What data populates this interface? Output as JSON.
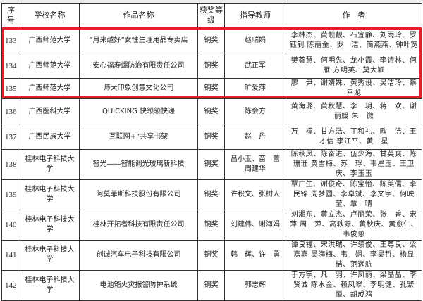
{
  "headers": {
    "index": "序号",
    "school": "学校名称",
    "work": "作品名称",
    "award": "获奖等级",
    "teacher": "指导教师",
    "authors": "作　者"
  },
  "highlight_color": "#e3202a",
  "rows": [
    {
      "index": "133",
      "school": "广西师范大学",
      "work": "“月来越好”女性生理用品专卖店",
      "award": "铜奖",
      "teacher": "赵瑞娟",
      "authors": "李林杰、黄靓靓、石宜静、刘雨玲、罗钰钊 陈丽金、罗　洁、简燕燕、钟叶宽"
    },
    {
      "index": "134",
      "school": "广西师范大学",
      "work": "安心福寿螺防治有限责任公司",
      "award": "铜奖",
      "teacher": "武正军",
      "authors": "樊荟慧、何明先、龙小霞、李诗林、何　雁 方明芙、莫大颖"
    },
    {
      "index": "135",
      "school": "广西师范大学",
      "work": "师大印象创意文化公司",
      "award": "铜奖",
      "teacher": "旷爱萍",
      "authors": "廖　尹、谢婧姝、黄秀设、吴洁玲、蔡幸龙"
    },
    {
      "index": "136",
      "school": "广西医科大学",
      "work": "QUICKING 快领领快递",
      "award": "铜奖",
      "teacher": "陈会方",
      "authors": "黄海璐、黄秋慧、李　玥、蒋　欢、谢丽媛 朱　微"
    },
    {
      "index": "137",
      "school": "广西民族大学",
      "work": "互联网+”共享书架",
      "award": "铜奖",
      "teacher": "赵　丹",
      "authors": "万　樟、甘方浩、丁和礼、欧　洁、王才信 李江平、黄　星"
    },
    {
      "index": "138",
      "school": "桂林电子科技大学",
      "work": "智光——智能调光玻璃新科技",
      "award": "铜奖",
      "teacher": "吕小玉、苗　蕾 周建华",
      "authors": "陈秋凤、陈奋进、伍少海、甘英爽、陈珊珊 黄雪梅、苏　琈、韦星玉、王卫庆、李玉玉"
    },
    {
      "index": "139",
      "school": "桂林电子科技大学",
      "work": "阿莫菲斯科技股份有限公司",
      "award": "铜奖",
      "teacher": "许积文、张树人",
      "authors": "覃广生、谢俊奇、陈宝怡、陈美儒、李民锦 周梦圆、李卓斌、李文宇、何映莹、覃　晴"
    },
    {
      "index": "140",
      "school": "桂林电子科技大学",
      "work": "桂林开拓者科技有限责任公司",
      "award": "铜奖",
      "teacher": "刘建伟、谢海娟",
      "authors": "刘湘东、黄立杰、卢丽荣、张　睿、宋　萍 周　萍、高轶源、黄秋庆、黄愈仁、韦俊葸"
    },
    {
      "index": "141",
      "school": "桂林电子科技大学",
      "work": "创诚汽车电子科技有限公司",
      "award": "铜奖",
      "teacher": "韩　辉、许　勇",
      "authors": "谭良福、宋洪瑞、许绩俊、王尊良、梁嘉嘉 吴海梅、韦　娴、李昊哲、杨显桔、范远航"
    },
    {
      "index": "142",
      "school": "桂林电子科技大学",
      "work": "电池箱火灾报警防护系统",
      "award": "铜奖",
      "teacher": "郭志辉",
      "authors": "于方宇、凡　羽、许凤丽、梁晶晶、李贤诚 陈水金、赖凤翠、李明健、孔繁恒、胡成鸿"
    }
  ]
}
